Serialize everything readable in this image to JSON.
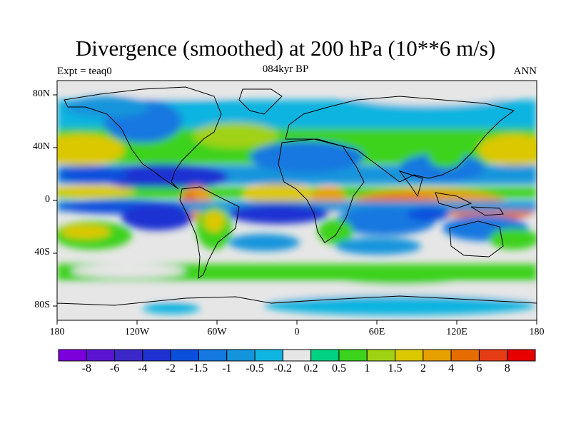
{
  "title": "Divergence (smoothed) at 200 hPa (10**6 m/s)",
  "subtitle": "084kyr BP",
  "left_label": "Expt = teaq0",
  "right_label": "ANN",
  "map": {
    "lat_ticks": [
      "80N",
      "40N",
      "0",
      "40S",
      "80S"
    ],
    "lon_ticks": [
      "180",
      "120W",
      "60W",
      "0",
      "60E",
      "120E",
      "180"
    ],
    "colors": {
      "land_outline": "#000000",
      "neutral": "#e6e6e6"
    }
  },
  "colorbar": {
    "colors": [
      "#7a00dc",
      "#5a14d2",
      "#3c28c8",
      "#1e32d2",
      "#0a50dc",
      "#1478e0",
      "#1494dc",
      "#10b4e0",
      "#e6e6e6",
      "#00d282",
      "#3cd21e",
      "#a0d214",
      "#dcc800",
      "#e6a000",
      "#e66e00",
      "#e63c14",
      "#e60000"
    ],
    "labels": [
      "-8",
      "-6",
      "-4",
      "-2",
      "-1.5",
      "-1",
      "-0.5",
      "-0.2",
      "0.2",
      "0.5",
      "1",
      "1.5",
      "2",
      "4",
      "6",
      "8"
    ]
  }
}
